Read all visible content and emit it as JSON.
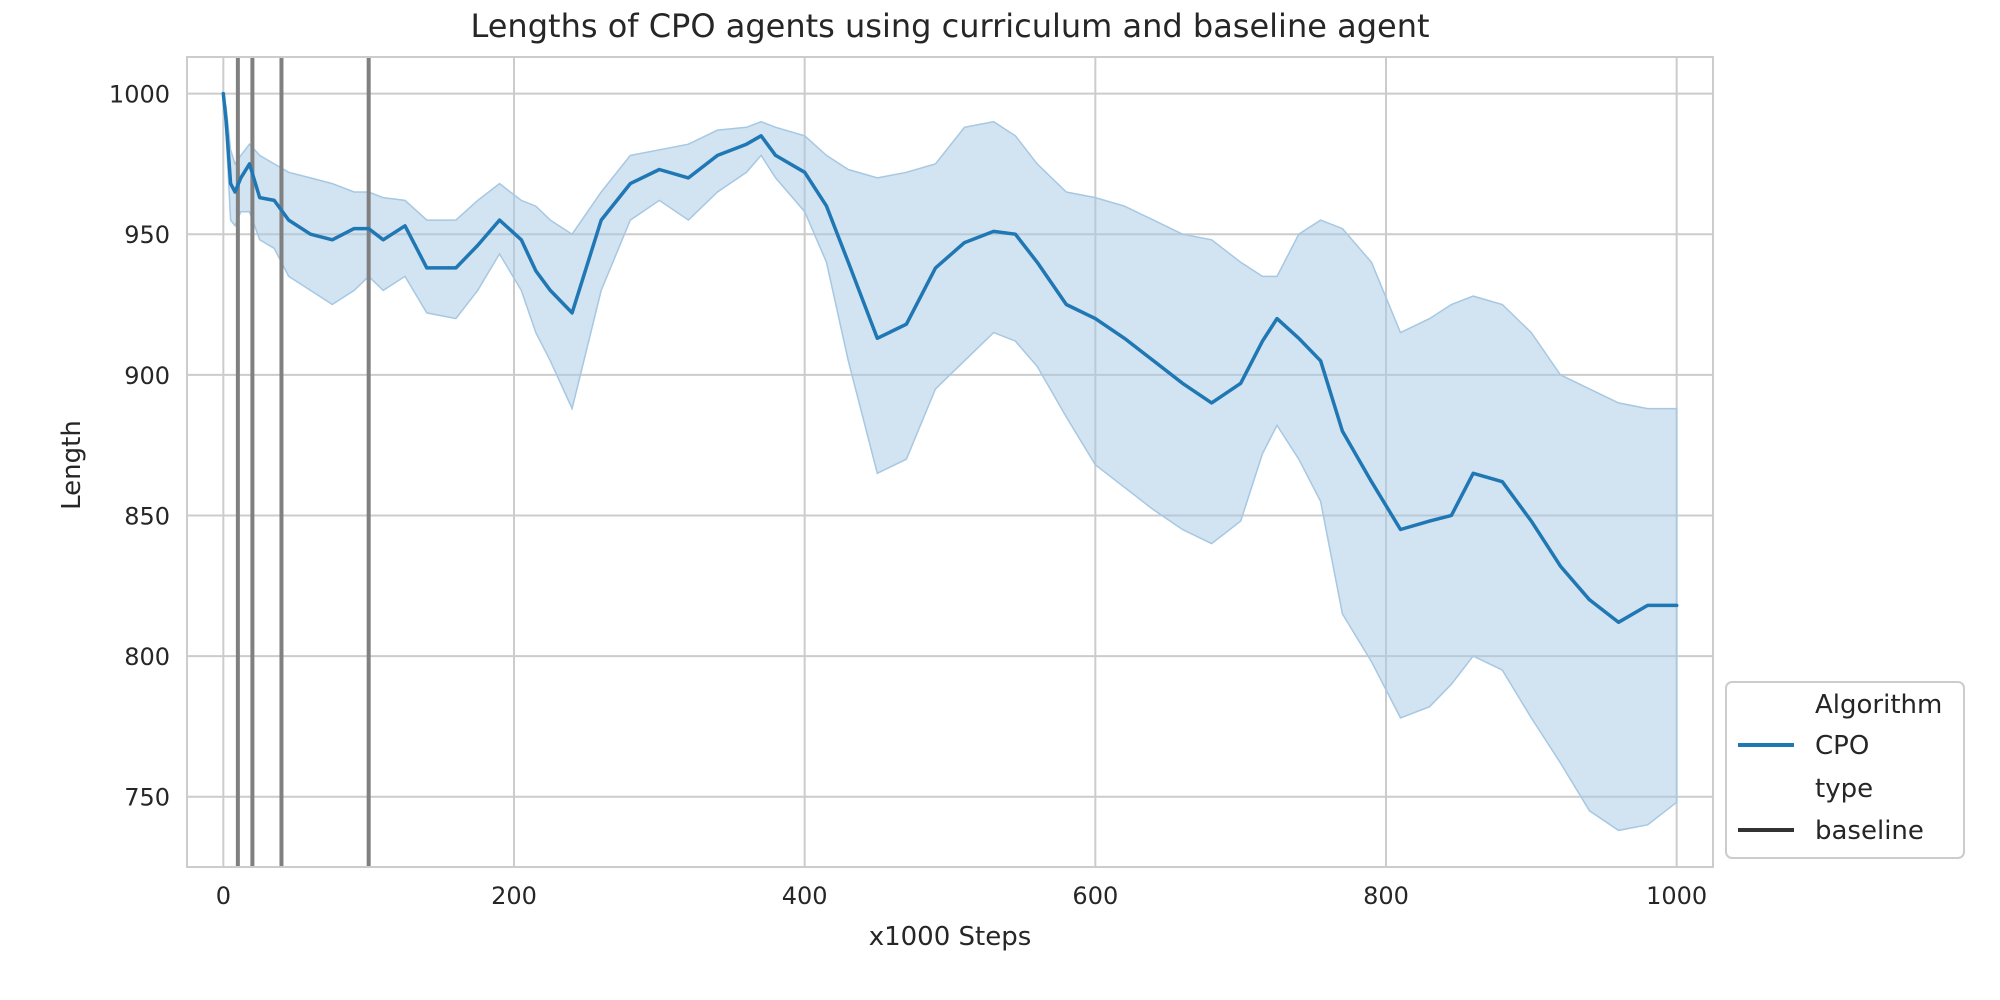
{
  "chart_data": {
    "type": "line",
    "title": "Lengths of CPO agents using curriculum and baseline agent",
    "xlabel": "x1000 Steps",
    "ylabel": "Length",
    "xlim": [
      -25,
      1025
    ],
    "ylim": [
      725,
      1013
    ],
    "xticks": [
      0,
      200,
      400,
      600,
      800,
      1000
    ],
    "yticks": [
      750,
      800,
      850,
      900,
      950,
      1000
    ],
    "grid": true,
    "legend": {
      "placement": "lower-right-outside",
      "entries": [
        {
          "label": "Algorithm",
          "kind": "header"
        },
        {
          "label": "CPO",
          "kind": "line",
          "color": "#1f77b4"
        },
        {
          "label": "type",
          "kind": "header"
        },
        {
          "label": "baseline",
          "kind": "line",
          "color": "#333333"
        }
      ]
    },
    "colors": {
      "series": "#1f77b4",
      "band": "#a6c8e3",
      "vlines": "#808080",
      "grid": "#cccccc"
    },
    "vlines": [
      10,
      20,
      40,
      100
    ],
    "series": [
      {
        "name": "CPO",
        "style": "baseline",
        "x": [
          0,
          2,
          5,
          8,
          12,
          18,
          25,
          35,
          45,
          60,
          75,
          90,
          100,
          110,
          125,
          140,
          160,
          175,
          190,
          205,
          215,
          225,
          240,
          260,
          280,
          300,
          320,
          340,
          360,
          370,
          380,
          400,
          415,
          430,
          450,
          470,
          490,
          510,
          530,
          545,
          560,
          580,
          600,
          620,
          640,
          660,
          680,
          700,
          715,
          725,
          740,
          755,
          770,
          790,
          810,
          830,
          845,
          860,
          880,
          900,
          920,
          940,
          960,
          980,
          1000
        ],
        "values": [
          1000,
          990,
          968,
          965,
          970,
          975,
          963,
          962,
          955,
          950,
          948,
          952,
          952,
          948,
          953,
          938,
          938,
          946,
          955,
          948,
          937,
          930,
          922,
          955,
          968,
          973,
          970,
          978,
          982,
          985,
          978,
          972,
          960,
          940,
          913,
          918,
          938,
          947,
          951,
          950,
          940,
          925,
          920,
          913,
          905,
          897,
          890,
          897,
          912,
          920,
          913,
          905,
          880,
          862,
          845,
          848,
          850,
          865,
          862,
          848,
          832,
          820,
          812,
          818,
          818
        ],
        "upper": [
          1000,
          995,
          980,
          975,
          978,
          982,
          978,
          975,
          972,
          970,
          968,
          965,
          965,
          963,
          962,
          955,
          955,
          962,
          968,
          962,
          960,
          955,
          950,
          965,
          978,
          980,
          982,
          987,
          988,
          990,
          988,
          985,
          978,
          973,
          970,
          972,
          975,
          988,
          990,
          985,
          975,
          965,
          963,
          960,
          955,
          950,
          948,
          940,
          935,
          935,
          950,
          955,
          952,
          940,
          915,
          920,
          925,
          928,
          925,
          915,
          900,
          895,
          890,
          888,
          888
        ],
        "lower": [
          1000,
          985,
          955,
          953,
          958,
          958,
          948,
          945,
          935,
          930,
          925,
          930,
          935,
          930,
          935,
          922,
          920,
          930,
          943,
          930,
          915,
          905,
          888,
          930,
          955,
          962,
          955,
          965,
          972,
          978,
          970,
          958,
          940,
          905,
          865,
          870,
          895,
          905,
          915,
          912,
          903,
          885,
          868,
          860,
          852,
          845,
          840,
          848,
          872,
          882,
          870,
          855,
          815,
          798,
          778,
          782,
          790,
          800,
          795,
          778,
          762,
          745,
          738,
          740,
          748
        ]
      }
    ]
  }
}
